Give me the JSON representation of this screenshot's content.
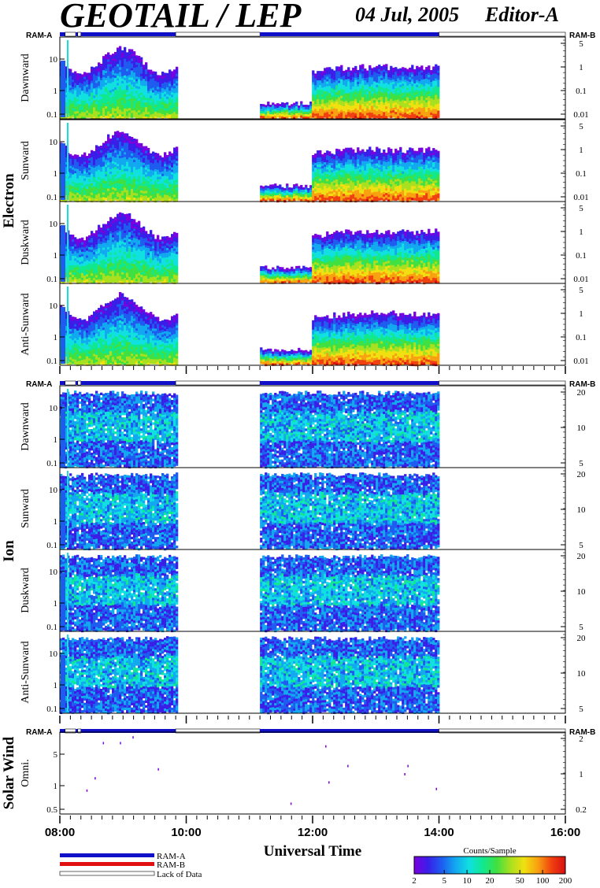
{
  "header": {
    "title": "GEOTAIL / LEP",
    "date": "04 Jul, 2005",
    "editor": "Editor-A"
  },
  "colors": {
    "ram_a": "#1010c8",
    "ram_b": "#e01010",
    "lack_of_data": "#ffffff",
    "background": "#ffffff",
    "colormap": [
      "#7a00e0",
      "#3a1ee8",
      "#1e5cf0",
      "#12a8f0",
      "#10e0e0",
      "#10e890",
      "#40e040",
      "#a8e020",
      "#f0e010",
      "#f8a010",
      "#f04010",
      "#d81010"
    ]
  },
  "chart_data": {
    "type": "heatmap",
    "x_axis": {
      "label": "Universal Time",
      "range": [
        "08:00",
        "16:00"
      ],
      "ticks": [
        "08:00",
        "10:00",
        "12:00",
        "14:00",
        "16:00"
      ]
    },
    "ram_labels": {
      "left": "RAM-A",
      "right": "RAM-B"
    },
    "ram_bar": [
      {
        "state": "RAM-A",
        "from": "08:00",
        "to": "08:05"
      },
      {
        "state": "Lack of Data",
        "from": "08:05",
        "to": "08:15"
      },
      {
        "state": "RAM-A",
        "from": "08:15",
        "to": "08:17"
      },
      {
        "state": "Lack of Data",
        "from": "08:17",
        "to": "08:20"
      },
      {
        "state": "RAM-A",
        "from": "08:20",
        "to": "09:50"
      },
      {
        "state": "Lack of Data",
        "from": "09:50",
        "to": "11:10"
      },
      {
        "state": "RAM-A",
        "from": "11:10",
        "to": "14:00"
      },
      {
        "state": "Lack of Data",
        "from": "14:00",
        "to": "16:00"
      }
    ],
    "data_coverage": [
      {
        "from": "08:00",
        "to": "09:50"
      },
      {
        "from": "11:10",
        "to": "14:00"
      }
    ],
    "groups": [
      {
        "name": "Electron",
        "panels": [
          {
            "name": "Dawnward",
            "left_ticks": [
              "10",
              "1",
              "0.1"
            ],
            "right_ticks": [
              "5",
              "1",
              "0.1",
              "0.01"
            ],
            "scale": "log"
          },
          {
            "name": "Sunward",
            "left_ticks": [
              "10",
              "1",
              "0.1"
            ],
            "right_ticks": [
              "5",
              "1",
              "0.1",
              "0.01"
            ],
            "scale": "log"
          },
          {
            "name": "Duskward",
            "left_ticks": [
              "10",
              "1",
              "0.1"
            ],
            "right_ticks": [
              "5",
              "1",
              "0.1",
              "0.01"
            ],
            "scale": "log"
          },
          {
            "name": "Anti-Sunward",
            "left_ticks": [
              "10",
              "1",
              "0.1"
            ],
            "right_ticks": [
              "5",
              "1",
              "0.1",
              "0.01"
            ],
            "scale": "log"
          }
        ]
      },
      {
        "name": "Ion",
        "panels": [
          {
            "name": "Dawnward",
            "left_ticks": [
              "10",
              "1",
              "0.1"
            ],
            "right_ticks": [
              "20",
              "10",
              "5"
            ],
            "scale": "log"
          },
          {
            "name": "Sunward",
            "left_ticks": [
              "10",
              "1",
              "0.1"
            ],
            "right_ticks": [
              "20",
              "10",
              "5"
            ],
            "scale": "log"
          },
          {
            "name": "Duskward",
            "left_ticks": [
              "10",
              "1",
              "0.1"
            ],
            "right_ticks": [
              "20",
              "10",
              "5"
            ],
            "scale": "log"
          },
          {
            "name": "Anti-Sunward",
            "left_ticks": [
              "10",
              "1",
              "0.1"
            ],
            "right_ticks": [
              "20",
              "10",
              "5"
            ],
            "scale": "log"
          }
        ]
      },
      {
        "name": "Solar Wind",
        "panels": [
          {
            "name": "Omni.",
            "left_ticks": [
              "5",
              "1",
              "0.5"
            ],
            "right_ticks": [
              "2",
              "1",
              "0.2"
            ],
            "scale": "log"
          }
        ]
      }
    ],
    "colorbar": {
      "title": "Counts/Sample",
      "ticks": [
        "2",
        "5",
        "10",
        "20",
        "50",
        "100",
        "200"
      ],
      "scale": "log"
    },
    "legend": [
      "RAM-A",
      "RAM-B",
      "Lack of Data"
    ]
  }
}
